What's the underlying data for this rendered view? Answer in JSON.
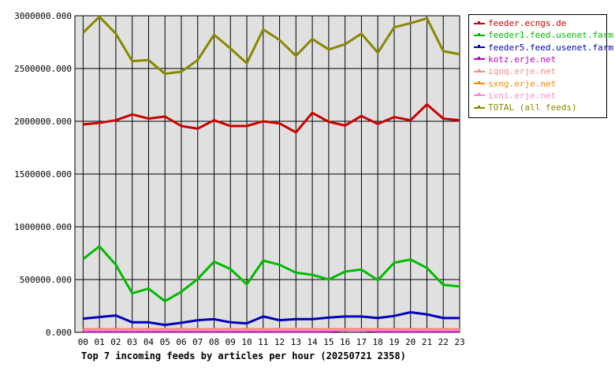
{
  "chart_data": {
    "type": "line",
    "title": "",
    "caption": "Top 7 incoming feeds by articles per hour (20250721 2358)",
    "xlabel": "",
    "ylabel": "",
    "ylim": [
      0,
      3000000
    ],
    "grid": true,
    "legend_position": "right",
    "x": [
      "00",
      "01",
      "02",
      "03",
      "04",
      "05",
      "06",
      "07",
      "08",
      "09",
      "10",
      "11",
      "12",
      "13",
      "14",
      "15",
      "16",
      "17",
      "18",
      "19",
      "20",
      "21",
      "22",
      "23"
    ],
    "y_ticks": [
      "0.000",
      "500000.000",
      "1000000.000",
      "1500000.000",
      "2000000.000",
      "2500000.000",
      "3000000.000"
    ],
    "series": [
      {
        "name": "feeder.ecngs.de",
        "color": "#cc0000",
        "values": [
          1970000,
          1985000,
          2010000,
          2065000,
          2025000,
          2045000,
          1955000,
          1930000,
          2010000,
          1955000,
          1955000,
          2000000,
          1980000,
          1895000,
          2080000,
          1995000,
          1960000,
          2050000,
          1975000,
          2040000,
          2010000,
          2160000,
          2025000,
          2010000
        ]
      },
      {
        "name": "feeder1.feed.usenet.farm",
        "color": "#00bb00",
        "values": [
          695000,
          815000,
          640000,
          370000,
          415000,
          295000,
          385000,
          505000,
          670000,
          600000,
          455000,
          680000,
          640000,
          565000,
          545000,
          500000,
          575000,
          595000,
          495000,
          660000,
          690000,
          610000,
          450000,
          435000
        ]
      },
      {
        "name": "feeder5.feed.usenet.farm",
        "color": "#0000bb",
        "values": [
          130000,
          145000,
          160000,
          95000,
          95000,
          70000,
          90000,
          115000,
          125000,
          95000,
          85000,
          150000,
          115000,
          125000,
          125000,
          140000,
          150000,
          150000,
          135000,
          155000,
          190000,
          170000,
          135000,
          135000
        ]
      },
      {
        "name": "kotz.erje.net",
        "color": "#bb00bb",
        "values": [
          10000,
          10000,
          10000,
          10000,
          10000,
          10000,
          10000,
          10000,
          10000,
          10000,
          10000,
          10000,
          10000,
          10000,
          10000,
          10000,
          20000,
          20000,
          10000,
          10000,
          10000,
          10000,
          10000,
          10000
        ]
      },
      {
        "name": "iqoq.erje.net",
        "color": "#ff8888",
        "values": [
          30000,
          30000,
          30000,
          30000,
          30000,
          30000,
          30000,
          30000,
          30000,
          30000,
          30000,
          30000,
          30000,
          30000,
          30000,
          30000,
          30000,
          30000,
          30000,
          30000,
          30000,
          30000,
          30000,
          30000
        ]
      },
      {
        "name": "sxng.erje.net",
        "color": "#ff8800",
        "values": [
          25000,
          25000,
          25000,
          25000,
          25000,
          25000,
          25000,
          25000,
          25000,
          25000,
          25000,
          25000,
          25000,
          25000,
          25000,
          25000,
          25000,
          25000,
          25000,
          25000,
          25000,
          25000,
          25000,
          25000
        ]
      },
      {
        "name": "ixni.erje.net",
        "color": "#ff88cc",
        "values": [
          20000,
          20000,
          20000,
          20000,
          20000,
          20000,
          20000,
          20000,
          20000,
          20000,
          20000,
          20000,
          20000,
          20000,
          20000,
          20000,
          20000,
          20000,
          20000,
          20000,
          20000,
          20000,
          20000,
          20000
        ]
      },
      {
        "name": "TOTAL (all feeds)",
        "color": "#888800",
        "values": [
          2840000,
          2990000,
          2830000,
          2570000,
          2580000,
          2450000,
          2470000,
          2580000,
          2820000,
          2690000,
          2550000,
          2870000,
          2770000,
          2620000,
          2780000,
          2680000,
          2730000,
          2830000,
          2650000,
          2890000,
          2930000,
          2975000,
          2665000,
          2635000
        ]
      }
    ]
  }
}
